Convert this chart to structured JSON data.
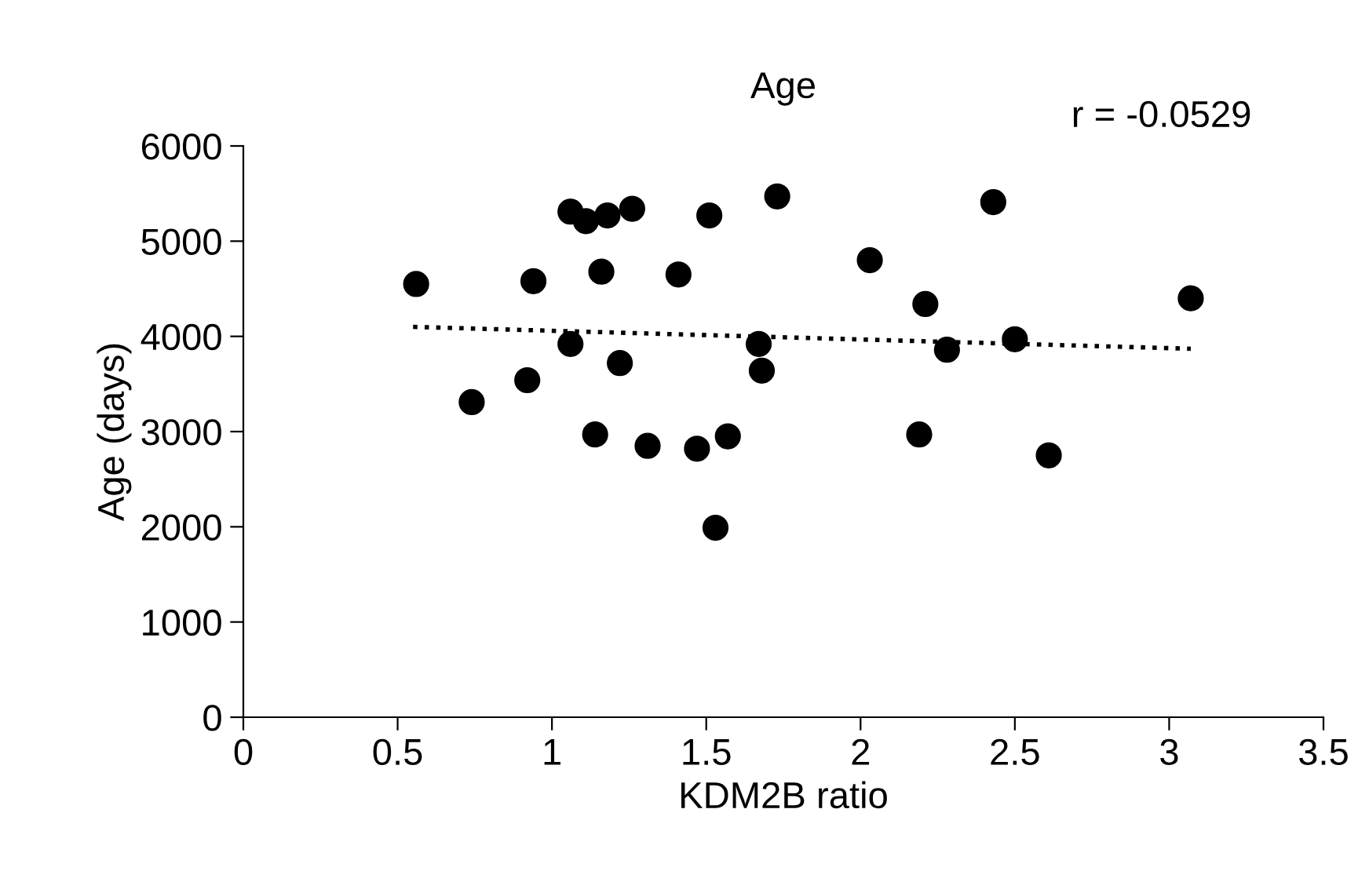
{
  "chart_data": {
    "type": "scatter",
    "title": "Age",
    "xlabel": "KDM2B ratio",
    "ylabel": "Age (days)",
    "annotations": [
      "r = -0.0529"
    ],
    "series": [
      {
        "color": "#000000",
        "marker": "circle",
        "x": [
          0.56,
          0.74,
          0.92,
          0.94,
          1.06,
          1.11,
          1.18,
          1.26,
          1.06,
          1.16,
          1.14,
          1.22,
          1.31,
          1.41,
          1.47,
          1.51,
          1.57,
          1.53,
          1.73,
          1.67,
          1.68,
          2.03,
          2.43,
          2.21,
          2.28,
          2.5,
          2.19,
          2.61,
          3.07
        ],
        "values": [
          4550,
          3310,
          3540,
          4580,
          5310,
          5210,
          5270,
          5340,
          3920,
          4680,
          2970,
          3720,
          2850,
          4650,
          2820,
          5270,
          2950,
          1990,
          5470,
          3920,
          3640,
          4800,
          5410,
          4340,
          3860,
          3970,
          2970,
          2750,
          4400
        ]
      },
      {
        "type": "line",
        "color": "#000000",
        "line_style": "dotted",
        "x": [
          0.55,
          3.07
        ],
        "values": [
          4100,
          3870
        ]
      }
    ],
    "xlim": [
      0,
      3.5
    ],
    "xticks": [
      0,
      0.5,
      1,
      1.5,
      2,
      2.5,
      3,
      3.5
    ],
    "ylim": [
      0,
      6000
    ],
    "yticks": [
      0,
      1000,
      2000,
      3000,
      4000,
      5000,
      6000
    ],
    "grid": false,
    "legend": false
  }
}
